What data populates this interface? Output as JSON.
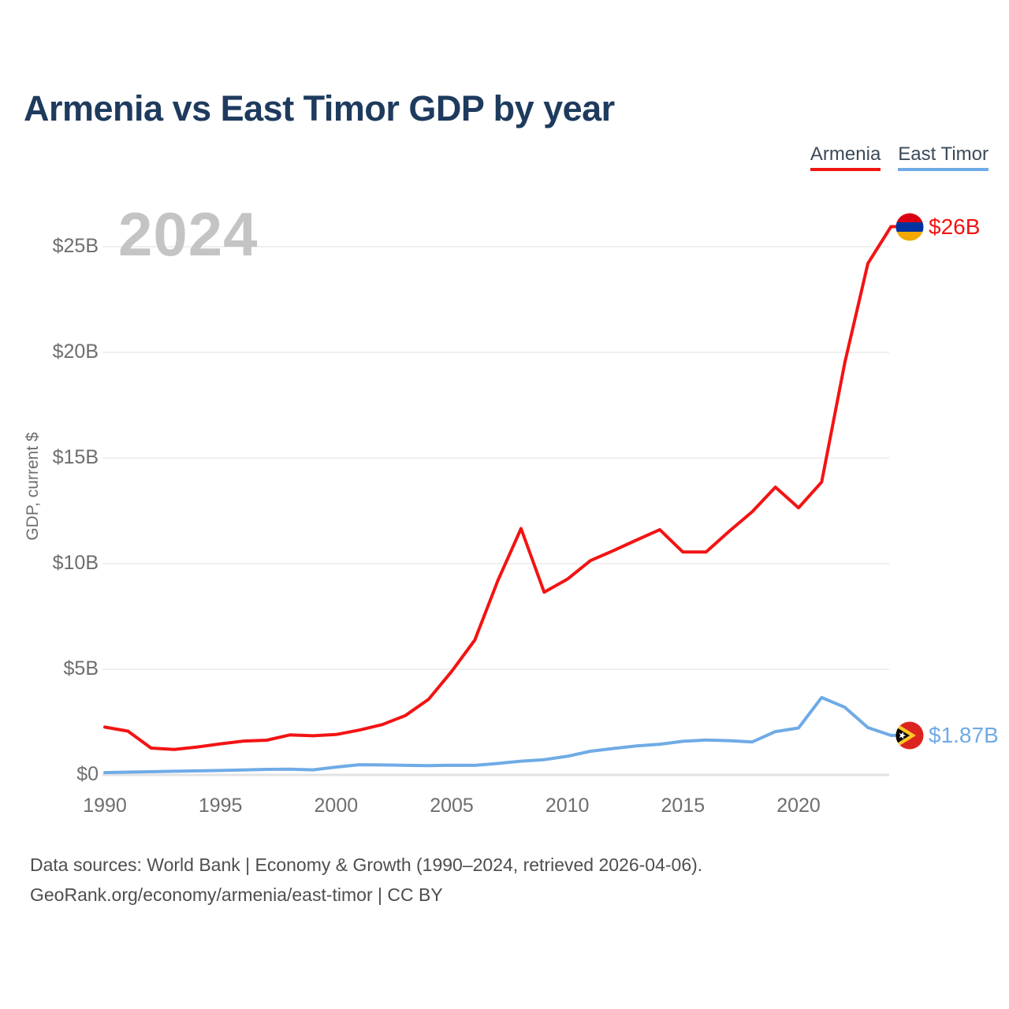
{
  "header": {
    "title": "Armenia vs East Timor GDP by year"
  },
  "legend": {
    "items": [
      {
        "label": "Armenia",
        "color": "#f31313"
      },
      {
        "label": "East Timor",
        "color": "#6fabe6"
      }
    ]
  },
  "watermark": {
    "text": "2024"
  },
  "y_axis": {
    "title": "GDP, current $"
  },
  "end_labels": [
    {
      "series": "Armenia",
      "text": "$26B",
      "color": "#f31313",
      "flag_icon": "armenia-flag-icon"
    },
    {
      "series": "East Timor",
      "text": "$1.87B",
      "color": "#6fabe6",
      "flag_icon": "east-timor-flag-icon"
    }
  ],
  "footer": {
    "line1": "Data sources: World Bank | Economy & Growth (1990–2024, retrieved 2026-04-06).",
    "line2": "GeoRank.org/economy/armenia/east-timor | CC BY"
  },
  "chart_data": {
    "type": "line",
    "title": "Armenia vs East Timor GDP by year",
    "xlabel": "",
    "ylabel": "GDP, current $",
    "ylim": [
      0,
      26.6
    ],
    "grid": "horizontal",
    "legend_position": "top-right",
    "x": [
      1990,
      1991,
      1992,
      1993,
      1994,
      1995,
      1996,
      1997,
      1998,
      1999,
      2000,
      2001,
      2002,
      2003,
      2004,
      2005,
      2006,
      2007,
      2008,
      2009,
      2010,
      2011,
      2012,
      2013,
      2014,
      2015,
      2016,
      2017,
      2018,
      2019,
      2020,
      2021,
      2022,
      2023,
      2024
    ],
    "series": [
      {
        "name": "Armenia",
        "color": "#f31313",
        "unit": "billion USD",
        "values": [
          2.26,
          2.07,
          1.27,
          1.2,
          1.32,
          1.47,
          1.6,
          1.64,
          1.89,
          1.85,
          1.91,
          2.12,
          2.38,
          2.81,
          3.58,
          4.9,
          6.38,
          9.21,
          11.66,
          8.65,
          9.26,
          10.14,
          10.62,
          11.12,
          11.61,
          10.55,
          10.55,
          11.53,
          12.46,
          13.62,
          12.64,
          13.86,
          19.51,
          24.21,
          25.95
        ]
      },
      {
        "name": "East Timor",
        "color": "#6fabe6",
        "unit": "billion USD",
        "values": [
          0.11,
          0.13,
          0.15,
          0.17,
          0.19,
          0.21,
          0.23,
          0.26,
          0.27,
          0.24,
          0.37,
          0.48,
          0.47,
          0.45,
          0.44,
          0.46,
          0.45,
          0.54,
          0.65,
          0.72,
          0.88,
          1.12,
          1.25,
          1.37,
          1.45,
          1.59,
          1.65,
          1.62,
          1.56,
          2.05,
          2.22,
          3.66,
          3.2,
          2.24,
          1.87
        ]
      }
    ],
    "yticks": [
      {
        "value": 0,
        "label": "$0"
      },
      {
        "value": 5,
        "label": "$5B"
      },
      {
        "value": 10,
        "label": "$10B"
      },
      {
        "value": 15,
        "label": "$15B"
      },
      {
        "value": 20,
        "label": "$20B"
      },
      {
        "value": 25,
        "label": "$25B"
      }
    ],
    "xticks": [
      1990,
      1995,
      2000,
      2005,
      2010,
      2015,
      2020
    ]
  }
}
